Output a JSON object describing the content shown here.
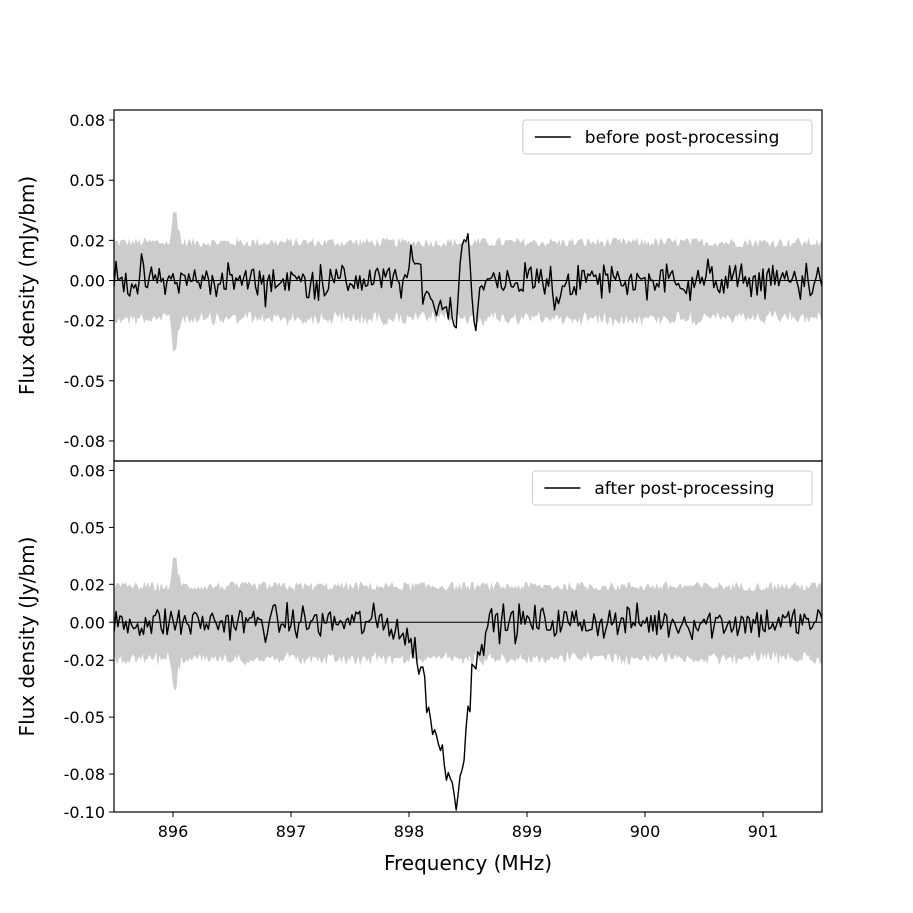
{
  "chart_data": [
    {
      "type": "line",
      "panel": "top",
      "xlim": [
        895.5,
        901.5
      ],
      "ylim": [
        -0.09,
        0.085
      ],
      "xticks": [],
      "yticks": [
        0.08,
        0.05,
        0.02,
        0.0,
        -0.02,
        -0.05,
        -0.08
      ],
      "ytick_labels": [
        "0.08",
        "0.05",
        "0.02",
        "0.00",
        "-0.02",
        "-0.05",
        "-0.08"
      ],
      "ylabel": "Flux density (mJy/bm)",
      "legend": "top-right",
      "noise_band": {
        "sigma": 0.019,
        "spike_at": 896.02,
        "spike_value": 0.034,
        "color": "#cccccc"
      },
      "series": [
        {
          "name": "before post-processing",
          "color": "#000000",
          "anchors": [
            [
              895.5,
              0.0
            ],
            [
              897.95,
              0.0
            ],
            [
              898.0,
              0.004
            ],
            [
              898.05,
              0.009
            ],
            [
              898.1,
              0.003
            ],
            [
              898.15,
              -0.006
            ],
            [
              898.2,
              -0.011
            ],
            [
              898.25,
              -0.014
            ],
            [
              898.3,
              -0.01
            ],
            [
              898.35,
              -0.016
            ],
            [
              898.4,
              -0.018
            ],
            [
              898.45,
              0.021
            ],
            [
              898.5,
              0.021
            ],
            [
              898.53,
              0.0
            ],
            [
              898.56,
              -0.024
            ],
            [
              898.62,
              -0.005
            ],
            [
              898.68,
              0.0
            ],
            [
              899.2,
              0.0
            ],
            [
              899.25,
              -0.015
            ],
            [
              899.3,
              0.0
            ],
            [
              901.5,
              0.0
            ]
          ],
          "noise_amplitude": 0.005
        }
      ]
    },
    {
      "type": "line",
      "panel": "bottom",
      "xlim": [
        895.5,
        901.5
      ],
      "ylim": [
        -0.1,
        0.085
      ],
      "xticks": [
        896,
        897,
        898,
        899,
        900,
        901
      ],
      "xtick_labels": [
        "896",
        "897",
        "898",
        "899",
        "900",
        "901"
      ],
      "yticks": [
        0.08,
        0.05,
        0.02,
        0.0,
        -0.02,
        -0.05,
        -0.08,
        -0.1
      ],
      "ytick_labels": [
        "0.08",
        "0.05",
        "0.02",
        "0.00",
        "-0.02",
        "-0.05",
        "-0.08",
        "-0.10"
      ],
      "xlabel": "Frequency (MHz)",
      "ylabel": "Flux density (Jy/bm)",
      "legend": "top-right",
      "noise_band": {
        "sigma": 0.019,
        "spike_at": 896.02,
        "spike_value": 0.034,
        "color": "#cccccc"
      },
      "series": [
        {
          "name": "after post-processing",
          "color": "#000000",
          "anchors": [
            [
              895.5,
              0.0
            ],
            [
              897.8,
              0.0
            ],
            [
              897.9,
              -0.003
            ],
            [
              898.0,
              -0.01
            ],
            [
              898.05,
              -0.015
            ],
            [
              898.1,
              -0.022
            ],
            [
              898.15,
              -0.04
            ],
            [
              898.2,
              -0.055
            ],
            [
              898.25,
              -0.065
            ],
            [
              898.3,
              -0.072
            ],
            [
              898.35,
              -0.083
            ],
            [
              898.4,
              -0.09
            ],
            [
              898.45,
              -0.075
            ],
            [
              898.5,
              -0.05
            ],
            [
              898.55,
              -0.02
            ],
            [
              898.6,
              -0.01
            ],
            [
              898.7,
              0.0
            ],
            [
              901.5,
              0.0
            ]
          ],
          "noise_amplitude": 0.005
        }
      ]
    }
  ]
}
